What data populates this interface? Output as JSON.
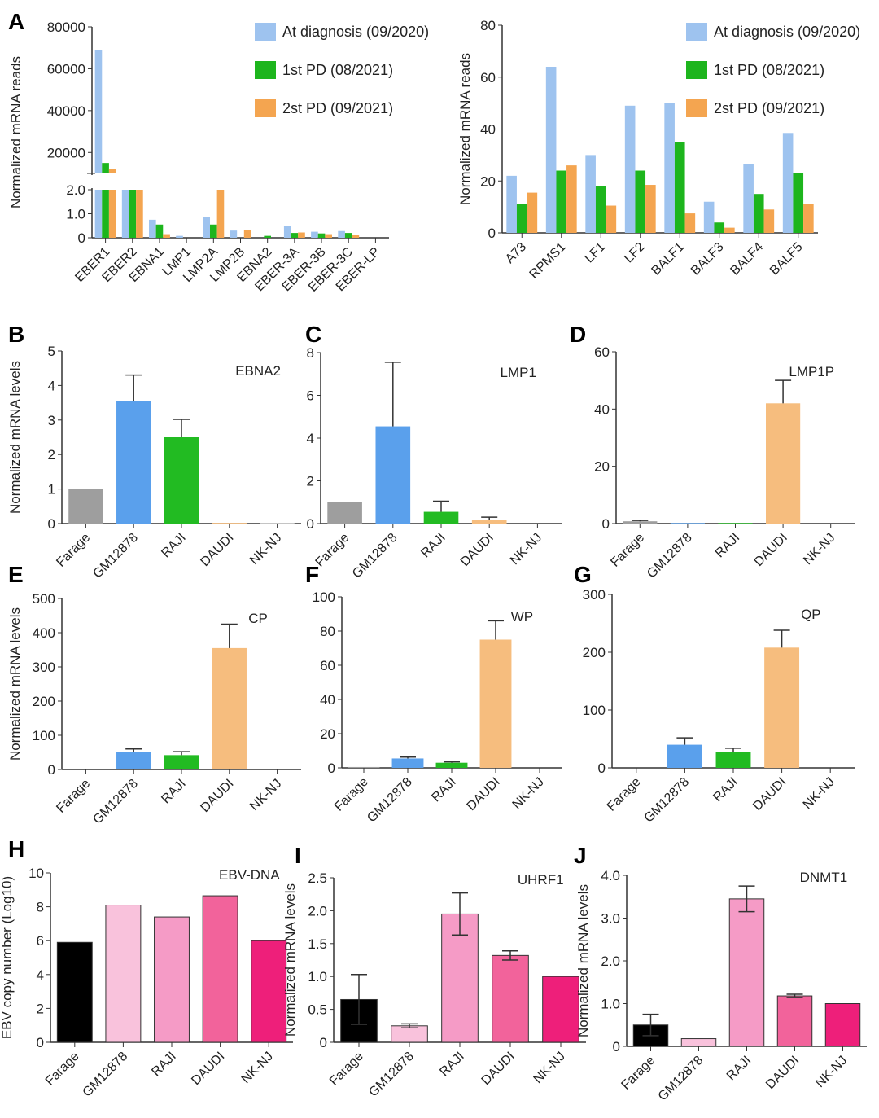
{
  "legend_series": [
    "At diagnosis  (09/2020)",
    "1st PD (08/2021)",
    "2st PD (09/2021)"
  ],
  "chart_data": [
    {
      "panel": "A",
      "type": "bar",
      "ylabel": "Normalized mRNA reads",
      "broken_axis": true,
      "ylim": [
        0,
        80000
      ],
      "yticks": [
        "0",
        "1.0",
        "2.0",
        "20000",
        "40000",
        "60000",
        "80000"
      ],
      "legend": "top-right",
      "categories": [
        "EBER1",
        "EBER2",
        "EBNA1",
        "LMP1",
        "LMP2A",
        "LMP2B",
        "EBNA2",
        "EBER-3A",
        "EBER-3B",
        "EBER-3C",
        "EBER-LP"
      ],
      "colors": [
        "#9ec3ef",
        "#1db51d",
        "#f4a550"
      ],
      "series": [
        {
          "name": "At diagnosis  (09/2020)",
          "values": [
            69000,
            2.0,
            0.75,
            0.08,
            0.85,
            0.3,
            0,
            0.5,
            0.25,
            0.28,
            0
          ]
        },
        {
          "name": "1st PD (08/2021)",
          "values": [
            15000,
            2.0,
            0.55,
            0,
            0.55,
            0,
            0.08,
            0.2,
            0.18,
            0.2,
            0
          ]
        },
        {
          "name": "2st PD (09/2021)",
          "values": [
            12000,
            2.0,
            0.15,
            0,
            2.0,
            0.32,
            0,
            0.22,
            0.15,
            0.12,
            0
          ]
        }
      ]
    },
    {
      "panel": "",
      "type": "bar",
      "ylabel": "Normalized mRNA reads",
      "ylim": [
        0,
        80
      ],
      "yticks": [
        0,
        20,
        40,
        60,
        80
      ],
      "legend": "top-right",
      "categories": [
        "A73",
        "RPMS1",
        "LF1",
        "LF2",
        "BALF1",
        "BALF3",
        "BALF4",
        "BALF5"
      ],
      "colors": [
        "#9ec3ef",
        "#1db51d",
        "#f4a550"
      ],
      "series": [
        {
          "name": "At diagnosis  (09/2020)",
          "values": [
            22,
            64,
            30,
            49,
            50,
            12,
            26.5,
            38.5
          ]
        },
        {
          "name": "1st PD (08/2021)",
          "values": [
            11,
            24,
            18,
            24,
            35,
            4,
            15,
            23
          ]
        },
        {
          "name": "2st PD (09/2021)",
          "values": [
            15.5,
            26,
            10.5,
            18.5,
            7.5,
            2,
            9,
            11
          ]
        }
      ]
    },
    {
      "panel": "B",
      "type": "bar",
      "title": "EBNA2",
      "ylabel": "Normalized mRNA levels",
      "ylim": [
        0,
        5
      ],
      "yticks": [
        0,
        1,
        2,
        3,
        4,
        5
      ],
      "categories": [
        "Farage",
        "GM12878",
        "RAJI",
        "DAUDI",
        "NK-NJ"
      ],
      "colors": [
        "#9e9e9e",
        "#5aa0ec",
        "#22bb22",
        "#f6bd7e",
        "#cccccc"
      ],
      "values": [
        1,
        3.55,
        2.5,
        0.02,
        0.02
      ],
      "errors": [
        0,
        0.75,
        0.52,
        0,
        0
      ]
    },
    {
      "panel": "C",
      "type": "bar",
      "title": "LMP1",
      "ylabel": "",
      "ylim": [
        0,
        8
      ],
      "yticks": [
        0,
        2,
        4,
        6,
        8
      ],
      "categories": [
        "Farage",
        "GM12878",
        "RAJI",
        "DAUDI",
        "NK-NJ"
      ],
      "colors": [
        "#9e9e9e",
        "#5aa0ec",
        "#22bb22",
        "#f6bd7e",
        "#cccccc"
      ],
      "values": [
        1,
        4.55,
        0.55,
        0.18,
        0
      ],
      "errors": [
        0,
        3.0,
        0.5,
        0.12,
        0
      ]
    },
    {
      "panel": "D",
      "type": "bar",
      "title": "LMP1P",
      "ylabel": "",
      "ylim": [
        0,
        60
      ],
      "yticks": [
        0,
        20,
        40,
        60
      ],
      "categories": [
        "Farage",
        "GM12878",
        "RAJI",
        "DAUDI",
        "NK-NJ"
      ],
      "colors": [
        "#9e9e9e",
        "#5aa0ec",
        "#22bb22",
        "#f6bd7e",
        "#cccccc"
      ],
      "values": [
        0.8,
        0.2,
        0.2,
        42,
        0
      ],
      "errors": [
        0.3,
        0,
        0,
        8,
        0
      ]
    },
    {
      "panel": "E",
      "type": "bar",
      "title": "CP",
      "ylabel": "Normalized mRNA levels",
      "ylim": [
        0,
        500
      ],
      "yticks": [
        0,
        100,
        200,
        300,
        400,
        500
      ],
      "categories": [
        "Farage",
        "GM12878",
        "RAJI",
        "DAUDI",
        "NK-NJ"
      ],
      "colors": [
        "#9e9e9e",
        "#5aa0ec",
        "#22bb22",
        "#f6bd7e",
        "#cccccc"
      ],
      "values": [
        0,
        52,
        42,
        355,
        0
      ],
      "errors": [
        0,
        8,
        10,
        70,
        0
      ]
    },
    {
      "panel": "F",
      "type": "bar",
      "title": "WP",
      "ylabel": "",
      "ylim": [
        0,
        100
      ],
      "yticks": [
        0,
        20,
        40,
        60,
        80,
        100
      ],
      "categories": [
        "Farage",
        "GM12878",
        "RAJI",
        "DAUDI",
        "NK-NJ"
      ],
      "colors": [
        "#9e9e9e",
        "#5aa0ec",
        "#22bb22",
        "#f6bd7e",
        "#cccccc"
      ],
      "values": [
        0.5,
        5.5,
        3,
        75,
        0
      ],
      "errors": [
        0,
        0.8,
        0.5,
        11,
        0
      ]
    },
    {
      "panel": "G",
      "type": "bar",
      "title": "QP",
      "ylabel": "",
      "ylim": [
        0,
        300
      ],
      "yticks": [
        0,
        100,
        200,
        300
      ],
      "categories": [
        "Farage",
        "GM12878",
        "RAJI",
        "DAUDI",
        "NK-NJ"
      ],
      "colors": [
        "#9e9e9e",
        "#5aa0ec",
        "#22bb22",
        "#f6bd7e",
        "#cccccc"
      ],
      "values": [
        0,
        40,
        28,
        208,
        0
      ],
      "errors": [
        0,
        12,
        6,
        30,
        0
      ]
    },
    {
      "panel": "H",
      "type": "bar",
      "title": "EBV-DNA",
      "ylabel": "EBV copy number (Log10)",
      "ylim": [
        0,
        10
      ],
      "yticks": [
        0,
        2,
        4,
        6,
        8,
        10
      ],
      "categories": [
        "Farage",
        "GM12878",
        "RAJI",
        "DAUDI",
        "NK-NJ"
      ],
      "colors": [
        "#000000",
        "#f9c2dc",
        "#f59bc6",
        "#f2639b",
        "#ee1f7a"
      ],
      "values": [
        5.9,
        8.1,
        7.4,
        8.65,
        6.0
      ],
      "errors": [
        0,
        0,
        0,
        0,
        0
      ]
    },
    {
      "panel": "I",
      "type": "bar",
      "title": "UHRF1",
      "ylabel": "Normalized mRNA levels",
      "ylim": [
        0,
        2.5
      ],
      "yticks": [
        "0",
        "0.5",
        "1.0",
        "1.5",
        "2.0",
        "2.5"
      ],
      "categories": [
        "Farage",
        "GM12878",
        "RAJI",
        "DAUDI",
        "NK-NJ"
      ],
      "colors": [
        "#000000",
        "#f9c2dc",
        "#f59bc6",
        "#f2639b",
        "#ee1f7a"
      ],
      "values": [
        0.65,
        0.25,
        1.95,
        1.32,
        1.0
      ],
      "errors": [
        0.38,
        0.03,
        0.32,
        0.07,
        0
      ]
    },
    {
      "panel": "J",
      "type": "bar",
      "title": "DNMT1",
      "ylabel": "Normalized mRNA levels",
      "ylim": [
        0,
        4
      ],
      "yticks": [
        "0",
        "1.0",
        "2.0",
        "3.0",
        "4.0"
      ],
      "categories": [
        "Farage",
        "GM12878",
        "RAJI",
        "DAUDI",
        "NK-NJ"
      ],
      "colors": [
        "#000000",
        "#f9c2dc",
        "#f59bc6",
        "#f2639b",
        "#ee1f7a"
      ],
      "values": [
        0.5,
        0.18,
        3.45,
        1.18,
        1.0
      ],
      "errors": [
        0.25,
        0,
        0.3,
        0.04,
        0
      ]
    }
  ]
}
